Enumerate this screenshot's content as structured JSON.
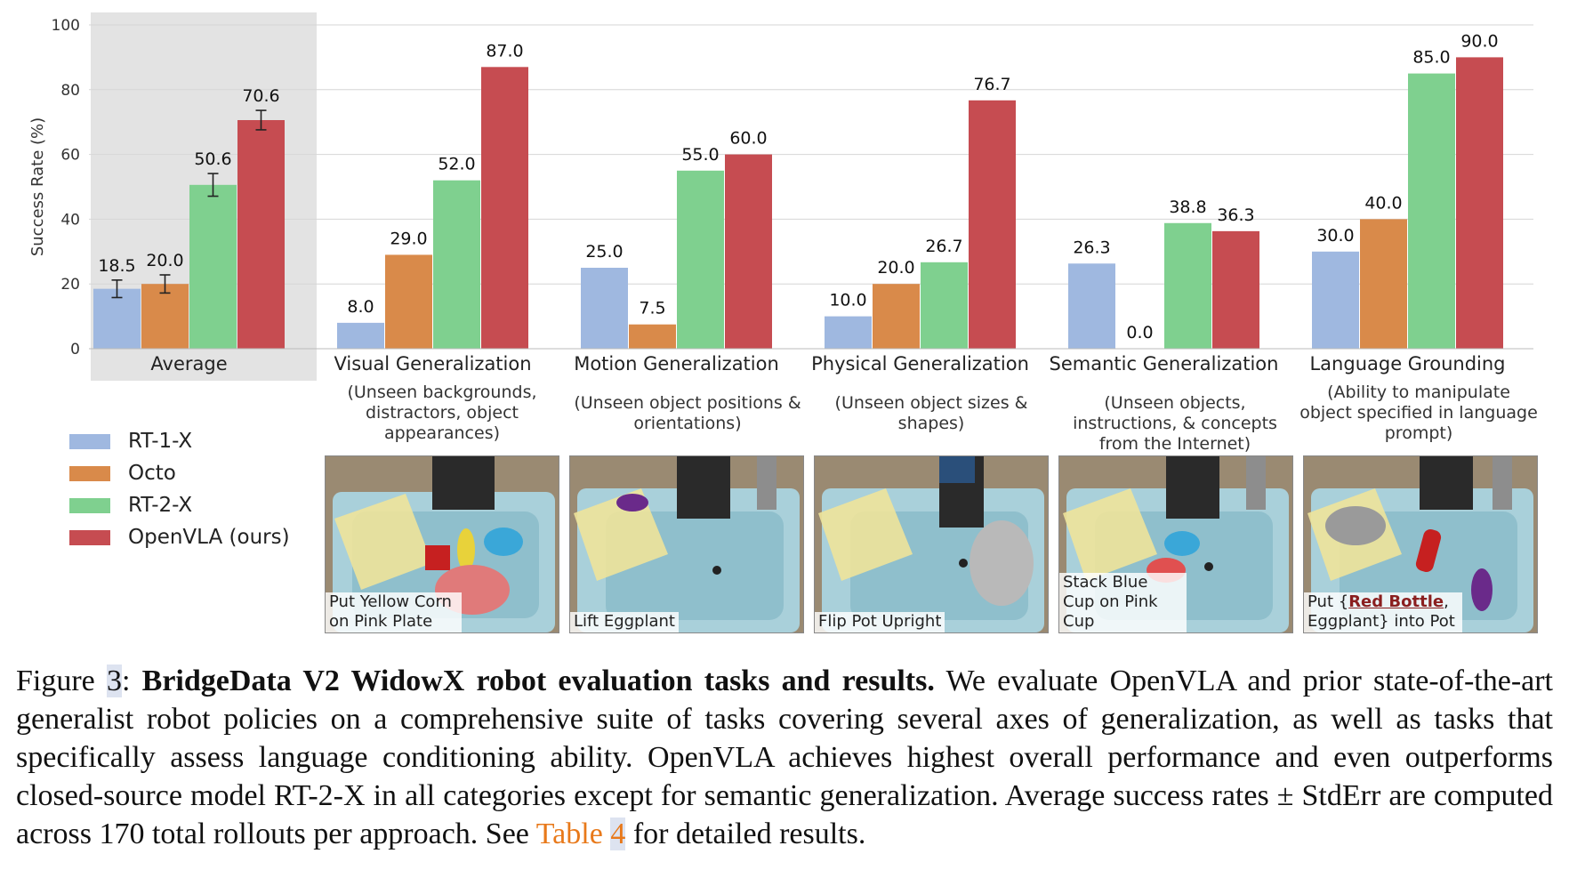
{
  "chart_data": {
    "type": "bar",
    "ylabel": "Success Rate (%)",
    "ylim": [
      0,
      100
    ],
    "yticks": [
      0,
      20,
      40,
      60,
      80,
      100
    ],
    "grid": true,
    "legend_position": "left, below axis",
    "highlighted_group": "Average",
    "categories": [
      "Average",
      "Visual Generalization",
      "Motion Generalization",
      "Physical Generalization",
      "Semantic Generalization",
      "Language Grounding"
    ],
    "subtitles": [
      "",
      "(Unseen backgrounds, distractors, object appearances)",
      "(Unseen object positions & orientations)",
      "(Unseen object sizes & shapes)",
      "(Unseen objects, instructions, & concepts from the Internet)",
      "(Ability to manipulate object specified in language prompt)"
    ],
    "series": [
      {
        "name": "RT-1-X",
        "color": "#9fb8e0",
        "values": [
          18.5,
          8.0,
          25.0,
          10.0,
          26.3,
          30.0
        ],
        "labels": [
          "18.5",
          "8.0",
          "25.0",
          "10.0",
          "26.3",
          "30.0"
        ]
      },
      {
        "name": "Octo",
        "color": "#d98a4a",
        "values": [
          20.0,
          29.0,
          7.5,
          20.0,
          0.0,
          40.0
        ],
        "labels": [
          "20.0",
          "29.0",
          "7.5",
          "20.0",
          "0.0",
          "40.0"
        ]
      },
      {
        "name": "RT-2-X",
        "color": "#7fd08f",
        "values": [
          50.6,
          52.0,
          55.0,
          26.7,
          38.8,
          85.0
        ],
        "labels": [
          "50.6",
          "52.0",
          "55.0",
          "26.7",
          "38.8",
          "85.0"
        ]
      },
      {
        "name": "OpenVLA (ours)",
        "color": "#c64c51",
        "values": [
          70.6,
          87.0,
          60.0,
          76.7,
          36.3,
          90.0
        ],
        "labels": [
          "70.6",
          "87.0",
          "60.0",
          "76.7",
          "36.3",
          "90.0"
        ]
      }
    ],
    "error_bars": {
      "Average": [
        2.7,
        2.8,
        3.5,
        3.0
      ]
    }
  },
  "tasks": [
    {
      "label": "Put Yellow Corn on Pink Plate"
    },
    {
      "label": "Lift Eggplant"
    },
    {
      "label": "Flip Pot Upright"
    },
    {
      "label": "Stack Blue Cup on Pink Cup"
    },
    {
      "label_prefix": "Put {",
      "label_bold": "Red Bottle",
      "label_suffix": ", Eggplant} into Pot"
    }
  ],
  "caption": {
    "prefix": "Figure ",
    "number": "3",
    "sep": ": ",
    "bold": "BridgeData V2 WidowX robot evaluation tasks and results.",
    "text1": " We evaluate OpenVLA and prior state-of-the-art generalist robot policies on a comprehensive suite of tasks covering several axes of generalization, as well as tasks that specifically assess language conditioning ability. OpenVLA achieves highest overall performance and even outperforms closed-source model RT-2-X in all categories except for semantic generalization. Average success rates ± StdErr are computed across 170 total rollouts per approach. See ",
    "ref_text": "Table ",
    "ref_num": "4",
    "text2": " for detailed results."
  }
}
